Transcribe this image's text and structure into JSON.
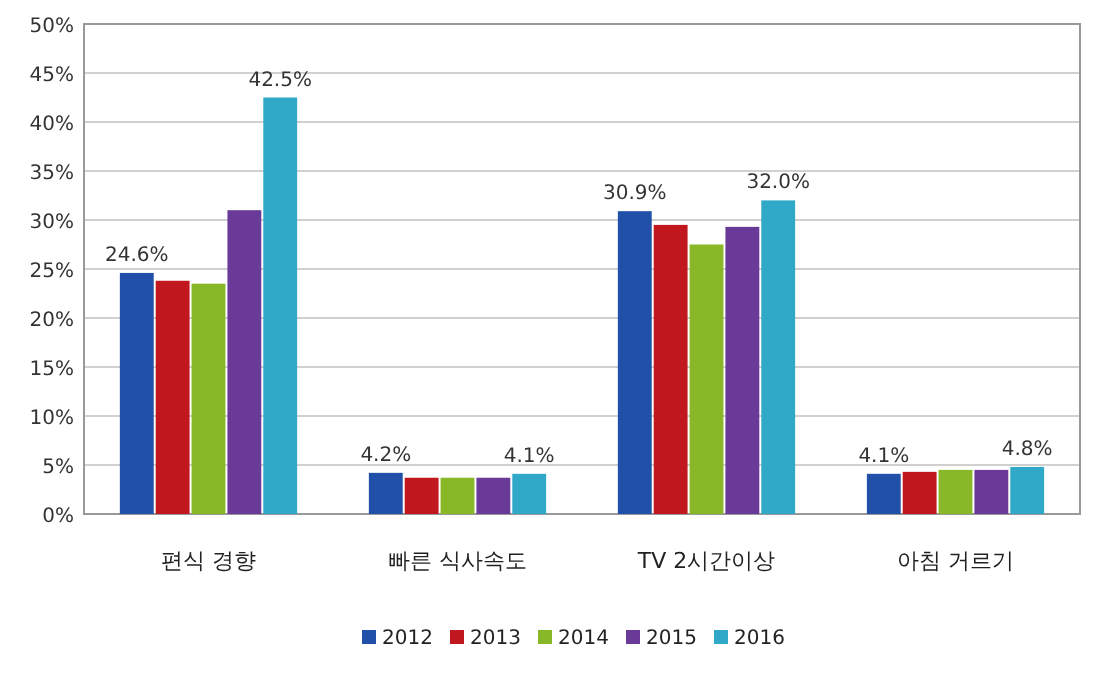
{
  "chart_data": {
    "type": "bar",
    "categories": [
      "편식 경향",
      "빠른 식사속도",
      "TV 2시간이상",
      "아침 거르기"
    ],
    "series": [
      {
        "name": "2012",
        "color": "#2050a8",
        "values": [
          24.6,
          4.2,
          30.9,
          4.1
        ],
        "value_labels": [
          "24.6%",
          "4.2%",
          "30.9%",
          "4.1%"
        ]
      },
      {
        "name": "2013",
        "color": "#c0181e",
        "values": [
          23.8,
          3.7,
          29.5,
          4.3
        ],
        "value_labels": [
          null,
          null,
          null,
          null
        ]
      },
      {
        "name": "2014",
        "color": "#88b828",
        "values": [
          23.5,
          3.7,
          27.5,
          4.5
        ],
        "value_labels": [
          null,
          null,
          null,
          null
        ]
      },
      {
        "name": "2015",
        "color": "#6a3a98",
        "values": [
          31.0,
          3.7,
          29.3,
          4.5
        ],
        "value_labels": [
          null,
          null,
          null,
          null
        ]
      },
      {
        "name": "2016",
        "color": "#30a8c8",
        "values": [
          42.5,
          4.1,
          32.0,
          4.8
        ],
        "value_labels": [
          "42.5%",
          "4.1%",
          "32.0%",
          "4.8%"
        ]
      }
    ],
    "ylim": [
      0,
      50
    ],
    "yticks": [
      {
        "value": 0,
        "label": "0%"
      },
      {
        "value": 5,
        "label": "5%"
      },
      {
        "value": 10,
        "label": "10%"
      },
      {
        "value": 15,
        "label": "15%"
      },
      {
        "value": 20,
        "label": "20%"
      },
      {
        "value": 25,
        "label": "25%"
      },
      {
        "value": 30,
        "label": "30%"
      },
      {
        "value": 35,
        "label": "35%"
      },
      {
        "value": 40,
        "label": "40%"
      },
      {
        "value": 45,
        "label": "45%"
      },
      {
        "value": 50,
        "label": "50%"
      }
    ],
    "grid": "y",
    "legend": "bottom"
  }
}
